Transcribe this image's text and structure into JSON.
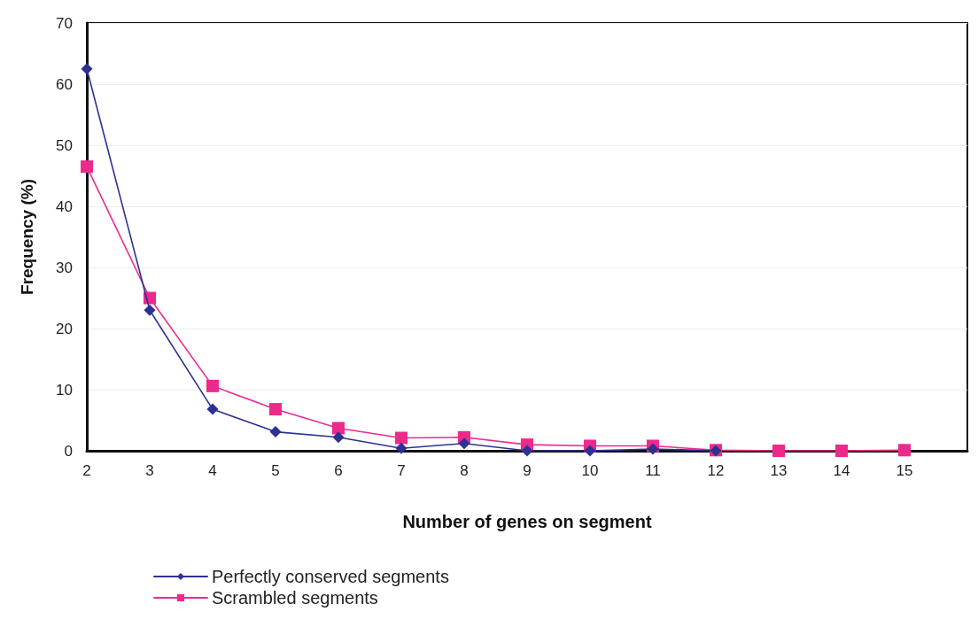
{
  "chart_data": {
    "type": "line",
    "xlabel": "Number of genes on segment",
    "ylabel": "Frequency (%)",
    "x": [
      2,
      3,
      4,
      5,
      6,
      7,
      8,
      9,
      10,
      11,
      12,
      13,
      14,
      15
    ],
    "series": [
      {
        "name": "Perfectly conserved segments",
        "color": "#2e3192",
        "marker": "diamond",
        "values": [
          62.5,
          23,
          6.8,
          3.1,
          2.2,
          0.4,
          1.2,
          0,
          0,
          0.3,
          0,
          null,
          null,
          null
        ]
      },
      {
        "name": "Scrambled segments",
        "color": "#ec2a8c",
        "marker": "square",
        "values": [
          46.5,
          25,
          10.6,
          6.8,
          3.7,
          2.1,
          2.2,
          1.0,
          0.8,
          0.8,
          0.1,
          0,
          0,
          0.1
        ]
      }
    ],
    "xlim": [
      2,
      16
    ],
    "xticks": [
      2,
      3,
      4,
      5,
      6,
      7,
      8,
      9,
      10,
      11,
      12,
      13,
      14,
      15
    ],
    "ylim": [
      0,
      70
    ],
    "yticks": [
      0,
      10,
      20,
      30,
      40,
      50,
      60,
      70
    ],
    "grid": "y",
    "legend": "bottom",
    "line_style": "solid"
  }
}
